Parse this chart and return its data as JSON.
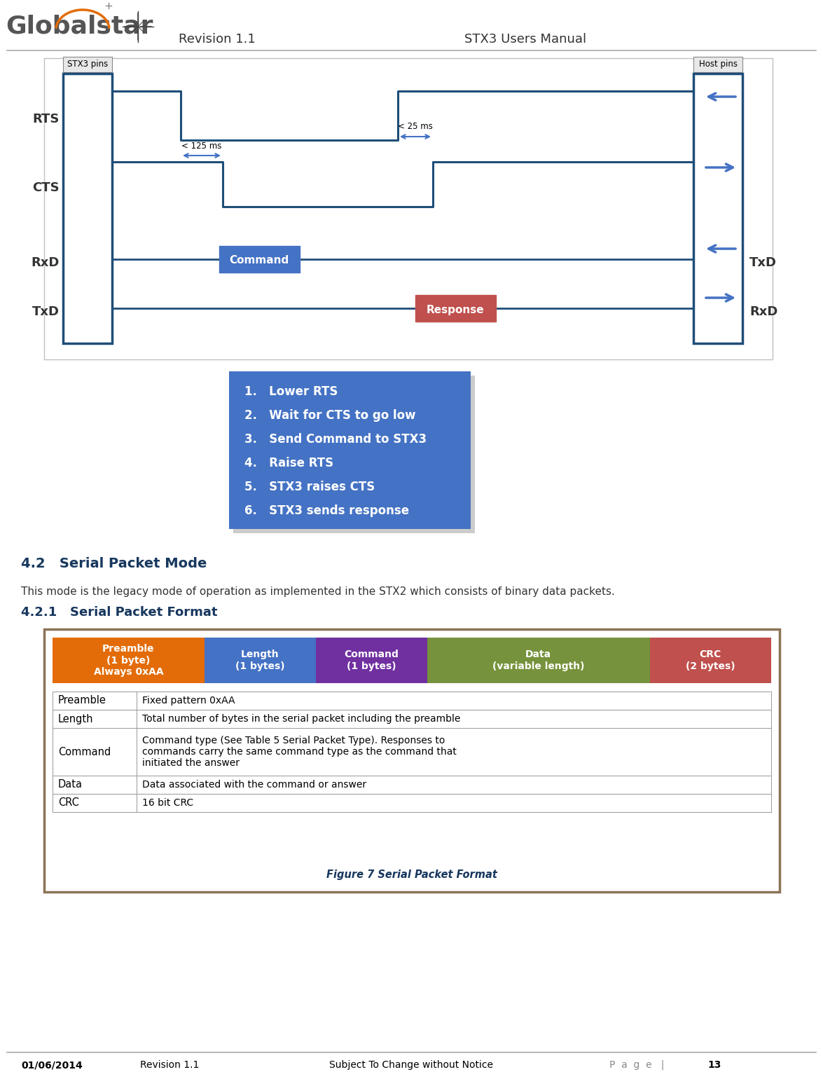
{
  "title_left": "Revision 1.1",
  "title_right": "STX3 Users Manual",
  "stx3_label": "STX3 pins",
  "host_label": "Host pins",
  "timing_label1": "< 125 ms",
  "timing_label2": "< 25 ms",
  "command_label": "Command",
  "response_label": "Response",
  "command_color": "#4472C4",
  "response_color": "#C0504D",
  "steps_bg_color": "#4472C4",
  "steps": [
    "1.   Lower RTS",
    "2.   Wait for CTS to go low",
    "3.   Send Command to STX3",
    "4.   Raise RTS",
    "5.   STX3 raises CTS",
    "6.   STX3 sends response"
  ],
  "section_42_title": "4.2   Serial Packet Mode",
  "section_421_title": "4.2.1   Serial Packet Format",
  "section_text": "This mode is the legacy mode of operation as implemented in the STX2 which consists of binary data packets.",
  "packet_headers": [
    "Preamble\n(1 byte)\nAlways 0xAA",
    "Length\n(1 bytes)",
    "Command\n(1 bytes)",
    "Data\n(variable length)",
    "CRC\n(2 bytes)"
  ],
  "packet_colors": [
    "#E36C09",
    "#4472C4",
    "#7030A0",
    "#76923C",
    "#C0504D"
  ],
  "packet_widths": [
    1.5,
    1.1,
    1.1,
    2.2,
    1.2
  ],
  "table_rows": [
    [
      "Preamble",
      "Fixed pattern 0xAA"
    ],
    [
      "Length",
      "Total number of bytes in the serial packet including the preamble"
    ],
    [
      "Command",
      "Command type (See Table 5 Serial Packet Type). Responses to\ncommands carry the same command type as the command that\ninitiated the answer"
    ],
    [
      "Data",
      "Data associated with the command or answer"
    ],
    [
      "CRC",
      "16 bit CRC"
    ]
  ],
  "figure_caption": "Figure 7 Serial Packet Format",
  "footer_date": "01/06/2014",
  "footer_rev": "Revision 1.1",
  "footer_notice": "Subject To Change without Notice",
  "footer_page": "P a g e  |  13",
  "teal_color": "#17375E",
  "dark_teal": "#1F4E79",
  "arrow_color": "#4472C4",
  "diag_line_color": "#1F4E79",
  "label_color": "#404040"
}
